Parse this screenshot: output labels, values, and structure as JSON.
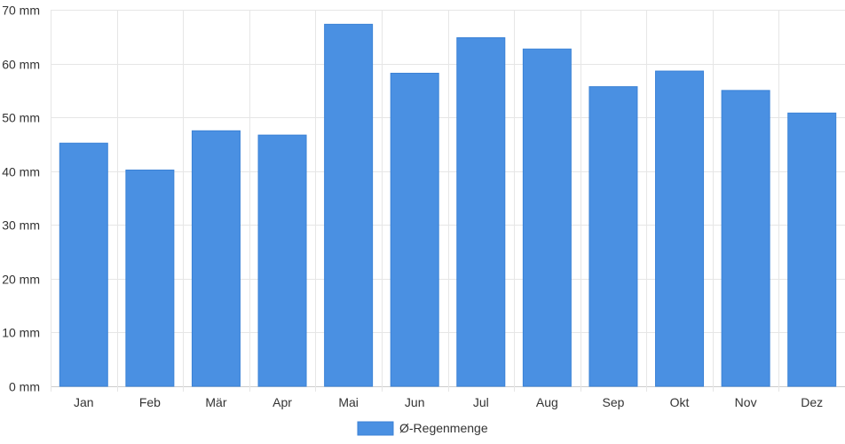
{
  "chart_data": {
    "type": "bar",
    "categories": [
      "Jan",
      "Feb",
      "Mär",
      "Apr",
      "Mai",
      "Jun",
      "Jul",
      "Aug",
      "Sep",
      "Okt",
      "Nov",
      "Dez"
    ],
    "series": [
      {
        "name": "Ø-Regenmenge",
        "values": [
          45.2,
          40.2,
          47.5,
          46.7,
          67.3,
          58.2,
          64.8,
          62.7,
          55.7,
          58.6,
          55.0,
          50.8
        ],
        "color": "#4a90e2"
      }
    ],
    "yticks": [
      "0 mm",
      "10 mm",
      "20 mm",
      "30 mm",
      "40 mm",
      "50 mm",
      "60 mm",
      "70 mm"
    ],
    "ylim": [
      0,
      70
    ],
    "y_unit": "mm",
    "grid": true,
    "legend_position": "bottom"
  }
}
